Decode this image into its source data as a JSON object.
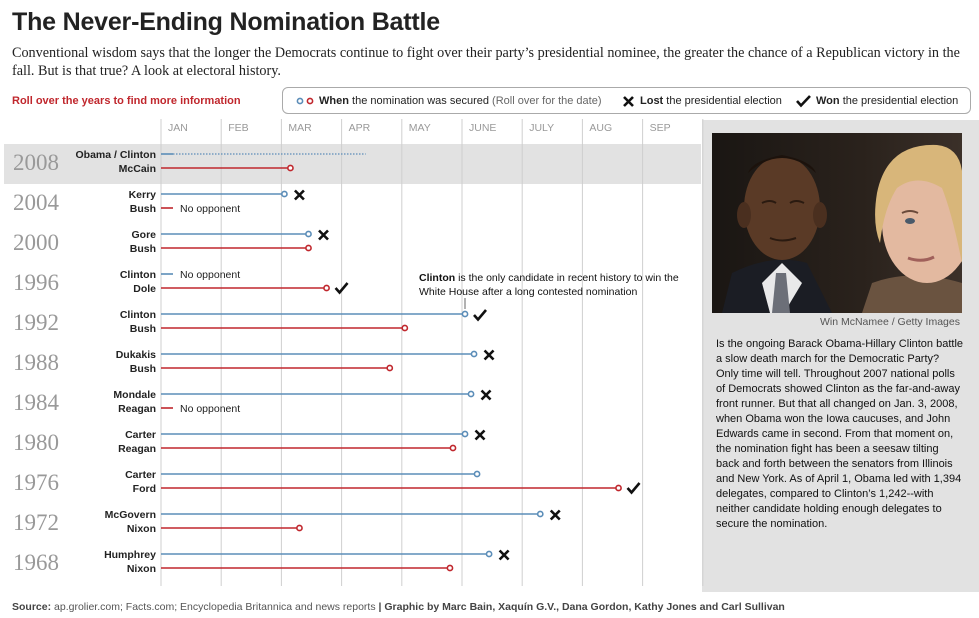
{
  "header": {
    "title": "The Never-Ending Nomination Battle",
    "subtitle": "Conventional wisdom says that the longer the Democrats continue to fight over their party’s presidential nominee, the greater the chance of a Republican victory in the fall. But is that true? A look at electoral history.",
    "rollover_hint": "Roll over the years to find more information"
  },
  "legend": {
    "secured_bold": "When",
    "secured_text": "the nomination was secured",
    "secured_hint": "(Roll over for the date)",
    "lost_bold": "Lost",
    "lost_text": "the presidential election",
    "won_bold": "Won",
    "won_text": "the presidential election"
  },
  "chart_data": {
    "type": "timeline",
    "months": [
      "JAN",
      "FEB",
      "MAR",
      "APR",
      "MAY",
      "JUNE",
      "JULY",
      "AUG",
      "SEP"
    ],
    "x_unit": "months from start of January in the election year",
    "xlim": [
      0,
      9
    ],
    "highlighted_year": "2008",
    "races": [
      {
        "year": "2008",
        "dem": "Obama / Clinton",
        "rep": "McCain",
        "dem_secured": null,
        "dem_ongoing_until": 3.4,
        "rep_secured": 2.15,
        "winner": null
      },
      {
        "year": "2004",
        "dem": "Kerry",
        "rep": "Bush",
        "dem_secured": 2.05,
        "rep_secured": null,
        "rep_note": "No opponent",
        "winner": "rep"
      },
      {
        "year": "2000",
        "dem": "Gore",
        "rep": "Bush",
        "dem_secured": 2.45,
        "rep_secured": 2.45,
        "winner": "rep"
      },
      {
        "year": "1996",
        "dem": "Clinton",
        "rep": "Dole",
        "dem_secured": null,
        "dem_note": "No opponent",
        "rep_secured": 2.75,
        "winner": "dem"
      },
      {
        "year": "1992",
        "dem": "Clinton",
        "rep": "Bush",
        "dem_secured": 5.05,
        "rep_secured": 4.05,
        "winner": "dem"
      },
      {
        "year": "1988",
        "dem": "Dukakis",
        "rep": "Bush",
        "dem_secured": 5.2,
        "rep_secured": 3.8,
        "winner": "rep"
      },
      {
        "year": "1984",
        "dem": "Mondale",
        "rep": "Reagan",
        "dem_secured": 5.15,
        "rep_secured": null,
        "rep_note": "No opponent",
        "winner": "rep"
      },
      {
        "year": "1980",
        "dem": "Carter",
        "rep": "Reagan",
        "dem_secured": 5.05,
        "rep_secured": 4.85,
        "winner": "rep"
      },
      {
        "year": "1976",
        "dem": "Carter",
        "rep": "Ford",
        "dem_secured": 5.25,
        "rep_secured": 7.6,
        "winner": "dem"
      },
      {
        "year": "1972",
        "dem": "McGovern",
        "rep": "Nixon",
        "dem_secured": 6.3,
        "rep_secured": 2.3,
        "winner": "rep"
      },
      {
        "year": "1968",
        "dem": "Humphrey",
        "rep": "Nixon",
        "dem_secured": 5.45,
        "rep_secured": 4.8,
        "winner": "rep"
      }
    ],
    "annotation_bold": "Clinton",
    "annotation_text": "is the only candidate in recent history to win the White House after a long contested nomination",
    "colors": {
      "dem": "#5b8db8",
      "rep": "#c0272d",
      "highlight": "#e2e2e2",
      "grid": "#cfcfcf",
      "year": "#999999"
    }
  },
  "sidebar": {
    "photo_credit": "Win McNamee / Getty Images",
    "text": "Is the ongoing Barack Obama-Hillary Clinton battle a slow death march for the Democratic Party? Only time will tell. Throughout 2007 national polls of Democrats showed Clinton as the far-and-away front runner. But that all changed on Jan. 3, 2008, when Obama won the Iowa caucuses, and John Edwards came in second. From that moment on, the nomination fight has been a seesaw tilting back and forth between the senators from Illinois and New York. As of April 1, Obama led with 1,394 delegates, compared to Clinton’s 1,242--with neither candidate holding enough delegates to secure the nomination."
  },
  "footer": {
    "source_label": "Source:",
    "source_text": "ap.grolier.com; Facts.com; Encyclopedia Britannica and news reports",
    "credits": "| Graphic by Marc Bain, Xaquín G.V., Dana Gordon, Kathy Jones and Carl Sullivan"
  }
}
